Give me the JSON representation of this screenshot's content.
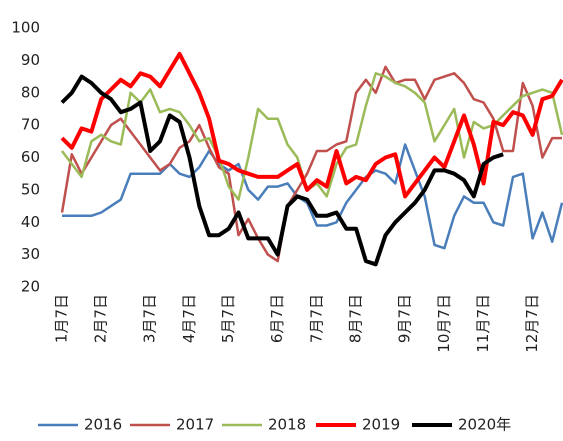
{
  "chart_data": {
    "type": "line",
    "categories": [
      "1月7日",
      null,
      null,
      null,
      "2月7日",
      null,
      null,
      null,
      null,
      "3月7日",
      null,
      null,
      null,
      "4月7日",
      null,
      null,
      null,
      "5月7日",
      null,
      null,
      null,
      null,
      "6月7日",
      null,
      null,
      null,
      "7月7日",
      null,
      null,
      null,
      "8月7日",
      null,
      null,
      null,
      null,
      "9月7日",
      null,
      null,
      null,
      "10月7日",
      null,
      null,
      null,
      "11月7日",
      null,
      null,
      null,
      null,
      "12月7日",
      null,
      null,
      null
    ],
    "ylim": [
      20,
      100
    ],
    "yticks": [
      20,
      30,
      40,
      50,
      60,
      70,
      80,
      90,
      100
    ],
    "grid": false,
    "legend": "bottom",
    "series": [
      {
        "name": "2016",
        "color": "#4a7ebb",
        "width": 2.5,
        "values": [
          42,
          42,
          42,
          42,
          43,
          45,
          47,
          55,
          55,
          55,
          55,
          58,
          55,
          54,
          57,
          62,
          58,
          56,
          58,
          50,
          47,
          51,
          51,
          52,
          48,
          46,
          39,
          39,
          40,
          46,
          50,
          54,
          56,
          55,
          52,
          64,
          56,
          48,
          33,
          32,
          42,
          48,
          46,
          46,
          40,
          39,
          54,
          55,
          35,
          43,
          34,
          46
        ]
      },
      {
        "name": "2017",
        "color": "#c0504d",
        "width": 2.5,
        "values": [
          43,
          61,
          55,
          60,
          65,
          70,
          72,
          68,
          64,
          60,
          56,
          58,
          63,
          65,
          70,
          63,
          57,
          55,
          36,
          41,
          35,
          30,
          28,
          45,
          50,
          55,
          62,
          62,
          64,
          65,
          80,
          84,
          80,
          88,
          83,
          84,
          84,
          78,
          84,
          85,
          86,
          83,
          78,
          77,
          72,
          62,
          62,
          83,
          76,
          60,
          66,
          66
        ]
      },
      {
        "name": "2018",
        "color": "#9bbb59",
        "width": 2.5,
        "values": [
          62,
          58,
          54,
          65,
          67,
          65,
          64,
          80,
          77,
          81,
          74,
          75,
          74,
          70,
          65,
          66,
          60,
          51,
          47,
          60,
          75,
          72,
          72,
          64,
          60,
          50,
          52,
          48,
          58,
          63,
          64,
          76,
          86,
          85,
          83,
          82,
          80,
          77,
          65,
          70,
          75,
          60,
          71,
          69,
          70,
          73,
          76,
          79,
          80,
          81,
          80,
          67
        ]
      },
      {
        "name": "2019",
        "color": "#ff0000",
        "width": 4,
        "values": [
          66,
          63,
          69,
          68,
          78,
          81,
          84,
          82,
          86,
          85,
          82,
          87,
          92,
          86,
          80,
          72,
          59,
          58,
          56,
          55,
          54,
          54,
          54,
          56,
          58,
          50,
          53,
          51,
          62,
          52,
          54,
          53,
          58,
          60,
          61,
          48,
          52,
          56,
          60,
          57,
          65,
          73,
          64,
          52,
          71,
          70,
          74,
          73,
          67,
          78,
          79,
          84
        ]
      },
      {
        "name": "2020年",
        "color": "#000000",
        "width": 4,
        "values": [
          77,
          80,
          85,
          83,
          80,
          78,
          74,
          75,
          77,
          62,
          65,
          73,
          71,
          60,
          45,
          36,
          36,
          38,
          43,
          35,
          35,
          35,
          30,
          45,
          48,
          47,
          42,
          42,
          43,
          38,
          38,
          28,
          27,
          36,
          40,
          43,
          46,
          50,
          56,
          56,
          55,
          53,
          48,
          58,
          60,
          61,
          null,
          null,
          null,
          null,
          null,
          null
        ]
      }
    ]
  }
}
